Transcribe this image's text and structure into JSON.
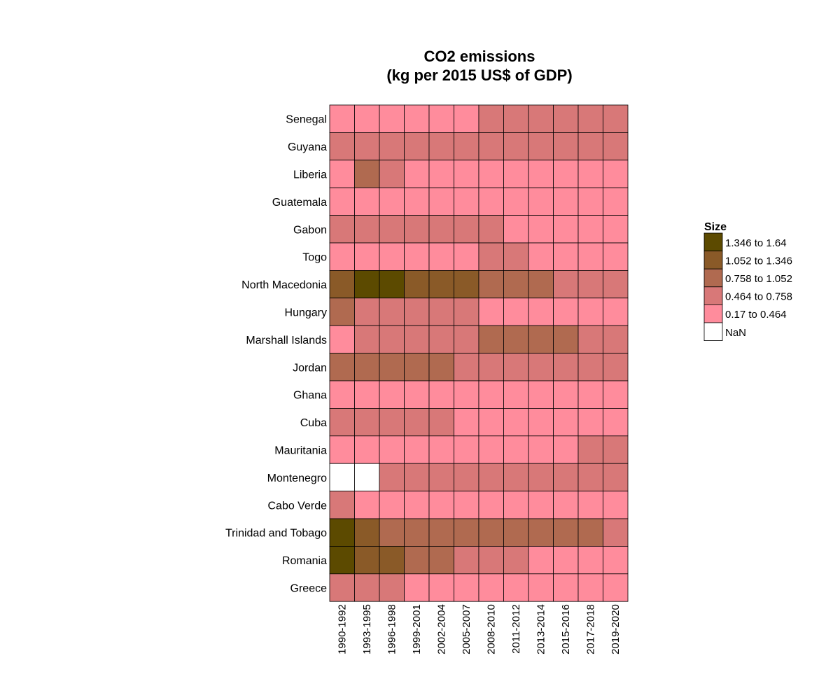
{
  "chart_data": {
    "type": "heatmap",
    "title": [
      "CO2 emissions",
      "(kg per 2015 US$ of GDP)"
    ],
    "columns": [
      "1990-1992",
      "1993-1995",
      "1996-1998",
      "1999-2001",
      "2002-2004",
      "2005-2007",
      "2008-2010",
      "2011-2012",
      "2013-2014",
      "2015-2016",
      "2017-2018",
      "2019-2020"
    ],
    "rows": [
      "Senegal",
      "Guyana",
      "Liberia",
      "Guatemala",
      "Gabon",
      "Togo",
      "North Macedonia",
      "Hungary",
      "Marshall Islands",
      "Jordan",
      "Ghana",
      "Cuba",
      "Mauritania",
      "Montenegro",
      "Cabo Verde",
      "Trinidad and Tobago",
      "Romania",
      "Greece"
    ],
    "values_bin_index": [
      [
        4,
        4,
        4,
        4,
        4,
        4,
        3,
        3,
        3,
        3,
        3,
        3
      ],
      [
        3,
        3,
        3,
        3,
        3,
        3,
        3,
        3,
        3,
        3,
        3,
        3
      ],
      [
        4,
        2,
        3,
        4,
        4,
        4,
        4,
        4,
        4,
        4,
        4,
        4
      ],
      [
        4,
        4,
        4,
        4,
        4,
        4,
        4,
        4,
        4,
        4,
        4,
        4
      ],
      [
        3,
        3,
        3,
        3,
        3,
        3,
        3,
        4,
        4,
        4,
        4,
        4
      ],
      [
        4,
        4,
        4,
        4,
        4,
        4,
        3,
        3,
        4,
        4,
        4,
        4
      ],
      [
        1,
        0,
        0,
        1,
        1,
        1,
        2,
        2,
        2,
        3,
        3,
        3
      ],
      [
        2,
        3,
        3,
        3,
        3,
        3,
        4,
        4,
        4,
        4,
        4,
        4
      ],
      [
        4,
        3,
        3,
        3,
        3,
        3,
        2,
        2,
        2,
        2,
        3,
        3
      ],
      [
        2,
        2,
        2,
        2,
        2,
        3,
        3,
        3,
        3,
        3,
        3,
        3
      ],
      [
        4,
        4,
        4,
        4,
        4,
        4,
        4,
        4,
        4,
        4,
        4,
        4
      ],
      [
        3,
        3,
        3,
        3,
        3,
        4,
        4,
        4,
        4,
        4,
        4,
        4
      ],
      [
        4,
        4,
        4,
        4,
        4,
        4,
        4,
        4,
        4,
        4,
        3,
        3
      ],
      [
        5,
        5,
        3,
        3,
        3,
        3,
        3,
        3,
        3,
        3,
        3,
        3
      ],
      [
        3,
        4,
        4,
        4,
        4,
        4,
        4,
        4,
        4,
        4,
        4,
        4
      ],
      [
        0,
        1,
        2,
        2,
        2,
        2,
        2,
        2,
        2,
        2,
        2,
        3
      ],
      [
        0,
        1,
        1,
        2,
        2,
        3,
        3,
        3,
        4,
        4,
        4,
        4
      ],
      [
        3,
        3,
        3,
        4,
        4,
        4,
        4,
        4,
        4,
        4,
        4,
        4
      ]
    ],
    "legend": {
      "title": "Size",
      "placement": "right",
      "bins": [
        {
          "label": "1.346 to 1.64",
          "color": "#5c4a00"
        },
        {
          "label": "1.052 to 1.346",
          "color": "#8a5a28"
        },
        {
          "label": "0.758 to 1.052",
          "color": "#b06a50"
        },
        {
          "label": "0.464 to 0.758",
          "color": "#d87878"
        },
        {
          "label": "0.17 to 0.464",
          "color": "#ff8c9c"
        },
        {
          "label": "NaN",
          "color": "#ffffff"
        }
      ]
    }
  }
}
